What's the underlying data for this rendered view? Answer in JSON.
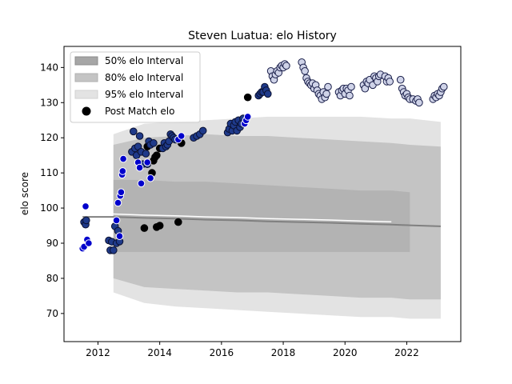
{
  "chart_data": {
    "type": "scatter",
    "title": "Steven Luatua: elo History",
    "xlabel": "",
    "ylabel": "elo score",
    "xlim": [
      2010.9,
      2023.75
    ],
    "ylim": [
      62,
      146
    ],
    "xticks": [
      2012,
      2014,
      2016,
      2018,
      2020,
      2022
    ],
    "yticks": [
      70,
      80,
      90,
      100,
      110,
      120,
      130,
      140
    ],
    "grid": false,
    "legend": {
      "placement": "top-left",
      "entries": [
        "50% elo Interval",
        "80% elo Interval",
        "95% elo Interval",
        "Post Match elo"
      ]
    },
    "colors": {
      "band50": "#a6a6a6",
      "band80": "#c4c4c4",
      "band95": "#e3e3e3",
      "median_line": "#808080",
      "white_line": "#ffffff",
      "dark_point": "#000000",
      "blue_point": "#0000cc",
      "navy_point": "#1f3a8a"
    },
    "interval_bands": {
      "x": [
        2011.5,
        2012.5,
        2013.5,
        2014.5,
        2015.5,
        2016.5,
        2017.5,
        2018.5,
        2019.5,
        2020.5,
        2021.5,
        2022.1,
        2023.1
      ],
      "p95_upper": [
        null,
        121,
        124,
        124.5,
        125,
        125.5,
        126,
        126,
        126,
        126,
        125.5,
        125.5,
        124.5
      ],
      "p80_upper": [
        null,
        118,
        120,
        120.5,
        121,
        120.5,
        120.5,
        120,
        119.5,
        119,
        118.5,
        118,
        117.5
      ],
      "p50_upper": [
        null,
        108,
        108,
        107.5,
        107.5,
        107,
        106.5,
        106,
        105.5,
        105,
        105,
        104.5,
        null
      ],
      "median": [
        97.5,
        97.5,
        97.2,
        97,
        96.7,
        96.5,
        96.2,
        96,
        95.8,
        95.5,
        95.3,
        95.1,
        94.8
      ],
      "p50_lower": [
        null,
        87.5,
        87.5,
        87.5,
        87.5,
        87.5,
        87.5,
        87.5,
        87.5,
        87.5,
        87.5,
        87.5,
        null
      ],
      "p80_lower": [
        null,
        80,
        77.5,
        77,
        76.5,
        76,
        76,
        75.5,
        75,
        74.5,
        74.5,
        74,
        74
      ],
      "p95_lower": [
        null,
        76,
        73,
        72,
        71.5,
        71,
        70.5,
        70,
        69.5,
        69,
        69,
        68.5,
        68.5
      ]
    },
    "series": [
      {
        "name": "Post Match elo",
        "marker_color": "dark",
        "x": [
          2013.5,
          2013.9,
          2014.0,
          2014.6,
          2014.7,
          2013.6,
          2013.75,
          2013.8,
          2013.85,
          2013.9,
          2014.0,
          2014.55,
          2014.7,
          2016.85
        ],
        "y": [
          94.3,
          94.6,
          95.0,
          96.0,
          118.5,
          117.5,
          110.0,
          113.5,
          114.5,
          115.0,
          117.0,
          119.5,
          118.5,
          131.5
        ]
      },
      {
        "name": "",
        "marker_color": "navy",
        "x": [
          2011.55,
          2011.6,
          2011.62,
          2012.35,
          2012.4,
          2012.45,
          2012.5,
          2012.55,
          2012.6,
          2012.65,
          2012.7,
          2013.1,
          2013.15,
          2013.2,
          2013.25,
          2013.3,
          2013.35,
          2013.4,
          2013.45,
          2013.55,
          2013.6,
          2013.65,
          2013.7,
          2013.8,
          2014.1,
          2014.15,
          2014.2,
          2014.25,
          2014.3,
          2014.35,
          2014.4,
          2014.45,
          2014.5,
          2015.1,
          2015.2,
          2015.3,
          2015.4,
          2016.2,
          2016.25,
          2016.3,
          2016.35,
          2016.4,
          2016.45,
          2016.5,
          2016.55,
          2016.6,
          2016.65,
          2016.7,
          2017.2,
          2017.25,
          2017.3,
          2017.35,
          2017.4,
          2017.45,
          2017.5
        ],
        "y": [
          96.0,
          95.3,
          96.5,
          90.8,
          88.0,
          90.4,
          88.0,
          94.8,
          90.0,
          93.5,
          90.5,
          116.0,
          121.8,
          117.0,
          115.0,
          117.5,
          120.5,
          116.0,
          112.5,
          115.5,
          112.5,
          119.0,
          118.0,
          118.5,
          117.0,
          118.5,
          117.5,
          118.0,
          119.0,
          121.0,
          120.5,
          120.0,
          119.5,
          120.0,
          120.5,
          121.0,
          122.0,
          121.5,
          122.5,
          124.0,
          122.0,
          123.5,
          124.5,
          122.0,
          125.0,
          123.0,
          124.0,
          125.5,
          132.0,
          132.5,
          133.0,
          133.0,
          134.5,
          133.5,
          132.5
        ]
      },
      {
        "name": "",
        "marker_color": "blue",
        "x": [
          2011.5,
          2011.55,
          2011.6,
          2011.65,
          2011.7,
          2012.6,
          2012.65,
          2012.7,
          2012.72,
          2012.75,
          2012.78,
          2012.8,
          2012.82,
          2013.3,
          2013.35,
          2013.4,
          2013.6,
          2013.7,
          2014.6,
          2014.7,
          2016.75,
          2016.8,
          2016.85
        ],
        "y": [
          88.5,
          89.0,
          100.5,
          91.0,
          90.0,
          96.5,
          101.5,
          92.0,
          103.5,
          104.5,
          109.5,
          110.5,
          114.0,
          113.0,
          111.5,
          107.0,
          113.0,
          108.5,
          119.5,
          120.5,
          124.0,
          125.0,
          126.0
        ]
      },
      {
        "name": "",
        "marker_color": "light",
        "x": [
          2017.6,
          2017.65,
          2017.7,
          2017.75,
          2017.8,
          2017.85,
          2017.9,
          2017.95,
          2018.0,
          2018.05,
          2018.1,
          2018.6,
          2018.65,
          2018.7,
          2018.75,
          2018.8,
          2018.85,
          2018.9,
          2018.95,
          2019.0,
          2019.05,
          2019.1,
          2019.15,
          2019.2,
          2019.25,
          2019.3,
          2019.35,
          2019.4,
          2019.45,
          2019.8,
          2019.85,
          2019.9,
          2019.95,
          2020.0,
          2020.05,
          2020.1,
          2020.15,
          2020.2,
          2020.6,
          2020.65,
          2020.7,
          2020.75,
          2020.8,
          2020.9,
          2020.95,
          2021.0,
          2021.05,
          2021.1,
          2021.15,
          2021.3,
          2021.35,
          2021.4,
          2021.45,
          2021.8,
          2021.85,
          2021.9,
          2021.95,
          2022.0,
          2022.05,
          2022.1,
          2022.2,
          2022.3,
          2022.35,
          2022.4,
          2022.85,
          2022.9,
          2022.95,
          2023.0,
          2023.05,
          2023.1,
          2023.15,
          2023.2
        ],
        "y": [
          139.0,
          137.5,
          136.5,
          138.0,
          139.0,
          138.5,
          140.0,
          140.5,
          140.0,
          141.0,
          140.5,
          141.5,
          140.0,
          139.0,
          137.0,
          136.0,
          135.5,
          135.0,
          135.5,
          134.0,
          135.0,
          133.5,
          132.5,
          132.0,
          131.0,
          133.0,
          131.5,
          132.5,
          134.5,
          133.0,
          132.0,
          133.5,
          134.0,
          132.5,
          134.0,
          133.5,
          132.0,
          134.5,
          135.0,
          134.0,
          136.0,
          135.5,
          136.5,
          135.0,
          137.5,
          137.0,
          136.0,
          137.5,
          138.0,
          137.5,
          136.0,
          137.0,
          136.0,
          136.5,
          134.0,
          133.0,
          132.0,
          132.5,
          131.5,
          131.0,
          131.0,
          130.5,
          131.0,
          130.0,
          131.0,
          132.0,
          131.5,
          132.5,
          132.0,
          133.0,
          134.0,
          134.5
        ]
      }
    ]
  }
}
